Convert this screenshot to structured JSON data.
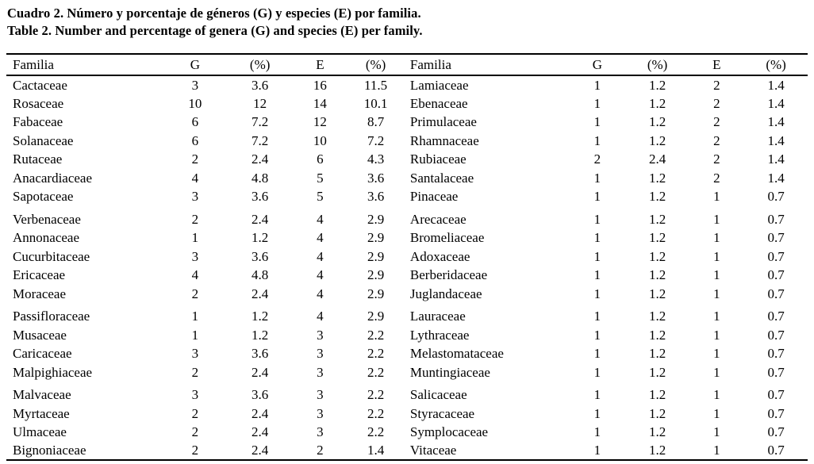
{
  "title": {
    "line1": "Cuadro 2. Número y porcentaje de géneros (G) y especies (E) por familia.",
    "line2": "Table 2. Number and percentage of genera (G) and species (E) per family."
  },
  "colors": {
    "background": "#ffffff",
    "text": "#000000",
    "rule": "#000000"
  },
  "table": {
    "headers": [
      "Familia",
      "G",
      "(%)",
      "E",
      "(%)",
      "Familia",
      "G",
      "(%)",
      "E",
      "(%)"
    ],
    "rows": [
      [
        "Cactaceae",
        "3",
        "3.6",
        "16",
        "11.5",
        "Lamiaceae",
        "1",
        "1.2",
        "2",
        "1.4"
      ],
      [
        "Rosaceae",
        "10",
        "12",
        "14",
        "10.1",
        "Ebenaceae",
        "1",
        "1.2",
        "2",
        "1.4"
      ],
      [
        "Fabaceae",
        "6",
        "7.2",
        "12",
        "8.7",
        "Primulaceae",
        "1",
        "1.2",
        "2",
        "1.4"
      ],
      [
        "Solanaceae",
        "6",
        "7.2",
        "10",
        "7.2",
        "Rhamnaceae",
        "1",
        "1.2",
        "2",
        "1.4"
      ],
      [
        "Rutaceae",
        "2",
        "2.4",
        "6",
        "4.3",
        "Rubiaceae",
        "2",
        "2.4",
        "2",
        "1.4"
      ],
      [
        "Anacardiaceae",
        "4",
        "4.8",
        "5",
        "3.6",
        "Santalaceae",
        "1",
        "1.2",
        "2",
        "1.4"
      ],
      [
        "Sapotaceae",
        "3",
        "3.6",
        "5",
        "3.6",
        "Pinaceae",
        "1",
        "1.2",
        "1",
        "0.7"
      ],
      [
        "Verbenaceae",
        "2",
        "2.4",
        "4",
        "2.9",
        "Arecaceae",
        "1",
        "1.2",
        "1",
        "0.7"
      ],
      [
        "Annonaceae",
        "1",
        "1.2",
        "4",
        "2.9",
        "Bromeliaceae",
        "1",
        "1.2",
        "1",
        "0.7"
      ],
      [
        "Cucurbitaceae",
        "3",
        "3.6",
        "4",
        "2.9",
        "Adoxaceae",
        "1",
        "1.2",
        "1",
        "0.7"
      ],
      [
        "Ericaceae",
        "4",
        "4.8",
        "4",
        "2.9",
        "Berberidaceae",
        "1",
        "1.2",
        "1",
        "0.7"
      ],
      [
        "Moraceae",
        "2",
        "2.4",
        "4",
        "2.9",
        "Juglandaceae",
        "1",
        "1.2",
        "1",
        "0.7"
      ],
      [
        "Passifloraceae",
        "1",
        "1.2",
        "4",
        "2.9",
        "Lauraceae",
        "1",
        "1.2",
        "1",
        "0.7"
      ],
      [
        "Musaceae",
        "1",
        "1.2",
        "3",
        "2.2",
        "Lythraceae",
        "1",
        "1.2",
        "1",
        "0.7"
      ],
      [
        "Caricaceae",
        "3",
        "3.6",
        "3",
        "2.2",
        "Melastomataceae",
        "1",
        "1.2",
        "1",
        "0.7"
      ],
      [
        "Malpighiaceae",
        "2",
        "2.4",
        "3",
        "2.2",
        "Muntingiaceae",
        "1",
        "1.2",
        "1",
        "0.7"
      ],
      [
        "Malvaceae",
        "3",
        "3.6",
        "3",
        "2.2",
        "Salicaceae",
        "1",
        "1.2",
        "1",
        "0.7"
      ],
      [
        "Myrtaceae",
        "2",
        "2.4",
        "3",
        "2.2",
        "Styracaceae",
        "1",
        "1.2",
        "1",
        "0.7"
      ],
      [
        "Ulmaceae",
        "2",
        "2.4",
        "3",
        "2.2",
        "Symplocaceae",
        "1",
        "1.2",
        "1",
        "0.7"
      ],
      [
        "Bignoniaceae",
        "2",
        "2.4",
        "2",
        "1.4",
        "Vitaceae",
        "1",
        "1.2",
        "1",
        "0.7"
      ]
    ]
  }
}
